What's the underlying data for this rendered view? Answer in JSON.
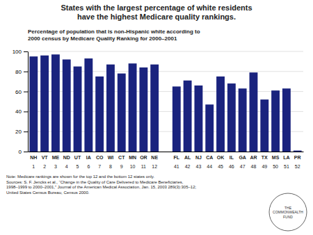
{
  "chart_data": {
    "type": "bar",
    "title": "States with the largest percentage of white residents\nhave the highest Medicare quality rankings.",
    "subtitle": "Percentage of population that is non-Hispanic white according to\n2000 census by Medicare Quality Ranking for 2000–2001",
    "categories": [
      "NH",
      "VT",
      "ME",
      "ND",
      "UT",
      "IA",
      "CO",
      "WI",
      "CT",
      "MN",
      "OR",
      "NE",
      null,
      "FL",
      "AL",
      "NJ",
      "CA",
      "OK",
      "IL",
      "GA",
      "AR",
      "TX",
      "MS",
      "LA",
      "PR"
    ],
    "rankings": [
      "1",
      "2",
      "3",
      "4",
      "5",
      "6",
      "7",
      "8",
      "9",
      "10",
      "11",
      "12",
      null,
      "41",
      "42",
      "43",
      "44",
      "45",
      "46",
      "47",
      "48",
      "49",
      "50",
      "51",
      "52"
    ],
    "values": [
      95,
      96,
      97,
      92,
      85,
      93,
      75,
      87,
      78,
      88,
      84,
      87,
      null,
      65,
      71,
      66,
      47,
      75,
      68,
      63,
      79,
      52,
      61,
      63,
      1
    ],
    "color": "#1a237e",
    "ylim": [
      0,
      100
    ],
    "yticks": [
      0,
      20,
      40,
      60,
      80,
      100
    ],
    "grid": true,
    "note": "Note: Medicare rankings are shown for the top 12 and the bottom 12 states only.",
    "source": "Sources: S. F. Jencks et al., “Change in the Quality of Care Delivered to Medicare Beneficiaries,\n1998–1999 to 2000–2001,” Journal of the American Medical Association, Jan. 15, 2003 289(3):305–12;\nUnited States Census Bureau, Census 2000.",
    "logo_text": "THE\nCOMMONWEALTH\nFUND"
  }
}
